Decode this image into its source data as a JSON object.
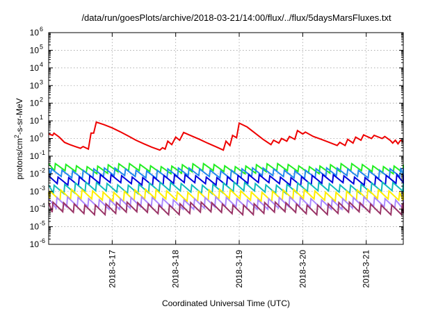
{
  "chart_data": {
    "type": "line",
    "title": "/data/run/goesPlots/archive/2018-03-21/14:00/flux/../flux/5daysMarsFluxes.txt",
    "xlabel": "Coordinated Universal Time (UTC)",
    "ylabel": {
      "prefix": "protons/cm",
      "sup": "2",
      "suffix": "-s-sr-MeV"
    },
    "yscale": "log",
    "ylim": [
      1e-06,
      1000000.0
    ],
    "y_ticks": [
      {
        "base": "10",
        "exp": "-6",
        "value": 1e-06
      },
      {
        "base": "10",
        "exp": "-5",
        "value": 1e-05
      },
      {
        "base": "10",
        "exp": "-4",
        "value": 0.0001
      },
      {
        "base": "10",
        "exp": "-3",
        "value": 0.001
      },
      {
        "base": "10",
        "exp": "-2",
        "value": 0.01
      },
      {
        "base": "10",
        "exp": "-1",
        "value": 0.1
      },
      {
        "base": "10",
        "exp": "0",
        "value": 1
      },
      {
        "base": "10",
        "exp": "1",
        "value": 10
      },
      {
        "base": "10",
        "exp": "2",
        "value": 100
      },
      {
        "base": "10",
        "exp": "3",
        "value": 1000
      },
      {
        "base": "10",
        "exp": "4",
        "value": 10000
      },
      {
        "base": "10",
        "exp": "5",
        "value": 100000
      },
      {
        "base": "10",
        "exp": "6",
        "value": 1000000
      }
    ],
    "xlim": [
      "2018-03-16T00:00",
      "2018-03-21T14:00"
    ],
    "x_ticks": [
      "2018-3-17",
      "2018-3-18",
      "2018-3-19",
      "2018-3-20",
      "2018-3-21"
    ],
    "grid": true,
    "sawtooth_period_hours": 4,
    "series": [
      {
        "color": "#ee0000",
        "linewidth": 2,
        "points": [
          [
            "2018-03-16T00:00",
            1.8
          ],
          [
            "2018-03-16T01:30",
            1.5
          ],
          [
            "2018-03-16T02:00",
            2.0
          ],
          [
            "2018-03-16T04:00",
            1.2
          ],
          [
            "2018-03-16T06:00",
            0.6
          ],
          [
            "2018-03-16T08:00",
            0.45
          ],
          [
            "2018-03-16T10:00",
            0.35
          ],
          [
            "2018-03-16T12:00",
            0.28
          ],
          [
            "2018-03-16T13:00",
            0.35
          ],
          [
            "2018-03-16T15:00",
            0.25
          ],
          [
            "2018-03-16T16:00",
            2.0
          ],
          [
            "2018-03-16T17:00",
            2.0
          ],
          [
            "2018-03-16T18:00",
            8.5
          ],
          [
            "2018-03-16T21:00",
            6.0
          ],
          [
            "2018-03-17T00:00",
            4.0
          ],
          [
            "2018-03-17T03:00",
            2.4
          ],
          [
            "2018-03-17T06:00",
            1.4
          ],
          [
            "2018-03-17T09:00",
            0.8
          ],
          [
            "2018-03-17T12:00",
            0.5
          ],
          [
            "2018-03-17T15:00",
            0.32
          ],
          [
            "2018-03-17T18:00",
            0.22
          ],
          [
            "2018-03-17T19:00",
            0.3
          ],
          [
            "2018-03-17T20:00",
            0.25
          ],
          [
            "2018-03-17T21:00",
            0.7
          ],
          [
            "2018-03-17T22:30",
            0.45
          ],
          [
            "2018-03-18T00:00",
            1.2
          ],
          [
            "2018-03-18T01:30",
            0.8
          ],
          [
            "2018-03-18T03:00",
            2.2
          ],
          [
            "2018-03-18T06:00",
            1.4
          ],
          [
            "2018-03-18T09:00",
            0.9
          ],
          [
            "2018-03-18T12:00",
            0.55
          ],
          [
            "2018-03-18T15:00",
            0.35
          ],
          [
            "2018-03-18T18:00",
            0.22
          ],
          [
            "2018-03-18T19:00",
            0.7
          ],
          [
            "2018-03-18T20:30",
            0.4
          ],
          [
            "2018-03-18T21:30",
            1.5
          ],
          [
            "2018-03-18T23:00",
            1.1
          ],
          [
            "2018-03-19T00:00",
            7.5
          ],
          [
            "2018-03-19T03:00",
            4.5
          ],
          [
            "2018-03-19T06:00",
            2.0
          ],
          [
            "2018-03-19T09:00",
            0.9
          ],
          [
            "2018-03-19T12:00",
            0.45
          ],
          [
            "2018-03-19T13:00",
            0.8
          ],
          [
            "2018-03-19T15:00",
            0.55
          ],
          [
            "2018-03-19T16:00",
            1.0
          ],
          [
            "2018-03-19T18:00",
            0.7
          ],
          [
            "2018-03-19T19:00",
            1.3
          ],
          [
            "2018-03-19T21:00",
            0.9
          ],
          [
            "2018-03-19T22:00",
            2.8
          ],
          [
            "2018-03-20T00:00",
            1.8
          ],
          [
            "2018-03-20T01:00",
            2.3
          ],
          [
            "2018-03-20T04:00",
            1.3
          ],
          [
            "2018-03-20T07:00",
            0.9
          ],
          [
            "2018-03-20T10:00",
            0.6
          ],
          [
            "2018-03-20T13:00",
            0.4
          ],
          [
            "2018-03-20T14:00",
            0.6
          ],
          [
            "2018-03-20T16:00",
            0.4
          ],
          [
            "2018-03-20T17:00",
            0.9
          ],
          [
            "2018-03-20T19:00",
            0.55
          ],
          [
            "2018-03-20T20:00",
            1.2
          ],
          [
            "2018-03-20T22:00",
            0.8
          ],
          [
            "2018-03-20T23:00",
            1.6
          ],
          [
            "2018-03-21T02:00",
            1.0
          ],
          [
            "2018-03-21T03:00",
            1.5
          ],
          [
            "2018-03-21T06:00",
            1.0
          ],
          [
            "2018-03-21T07:00",
            1.3
          ],
          [
            "2018-03-21T09:00",
            0.8
          ],
          [
            "2018-03-21T10:00",
            0.55
          ],
          [
            "2018-03-21T11:00",
            0.8
          ],
          [
            "2018-03-21T12:00",
            0.5
          ],
          [
            "2018-03-21T13:00",
            0.8
          ],
          [
            "2018-03-21T14:00",
            0.65
          ]
        ]
      },
      {
        "color": "#22ee22",
        "linewidth": 2,
        "base": 0.02,
        "ratio": 2.5,
        "drift": 0.2
      },
      {
        "color": "#2288ee",
        "linewidth": 2,
        "base": 0.011,
        "ratio": 2.7,
        "drift": 0.2
      },
      {
        "color": "#0000dd",
        "linewidth": 2,
        "base": 0.0045,
        "ratio": 2.8,
        "drift": 0.2
      },
      {
        "color": "#11bbbb",
        "linewidth": 2,
        "base": 0.0016,
        "ratio": 3.0,
        "drift": 0.2
      },
      {
        "color": "#ffee00",
        "linewidth": 2,
        "base": 0.0006,
        "ratio": 3.3,
        "drift": 0.2
      },
      {
        "color": "#aa88ff",
        "linewidth": 2,
        "base": 0.00022,
        "ratio": 3.4,
        "drift": 0.2
      },
      {
        "color": "#993366",
        "linewidth": 2,
        "base": 0.00011,
        "ratio": 3.5,
        "drift": 0.2
      }
    ]
  }
}
